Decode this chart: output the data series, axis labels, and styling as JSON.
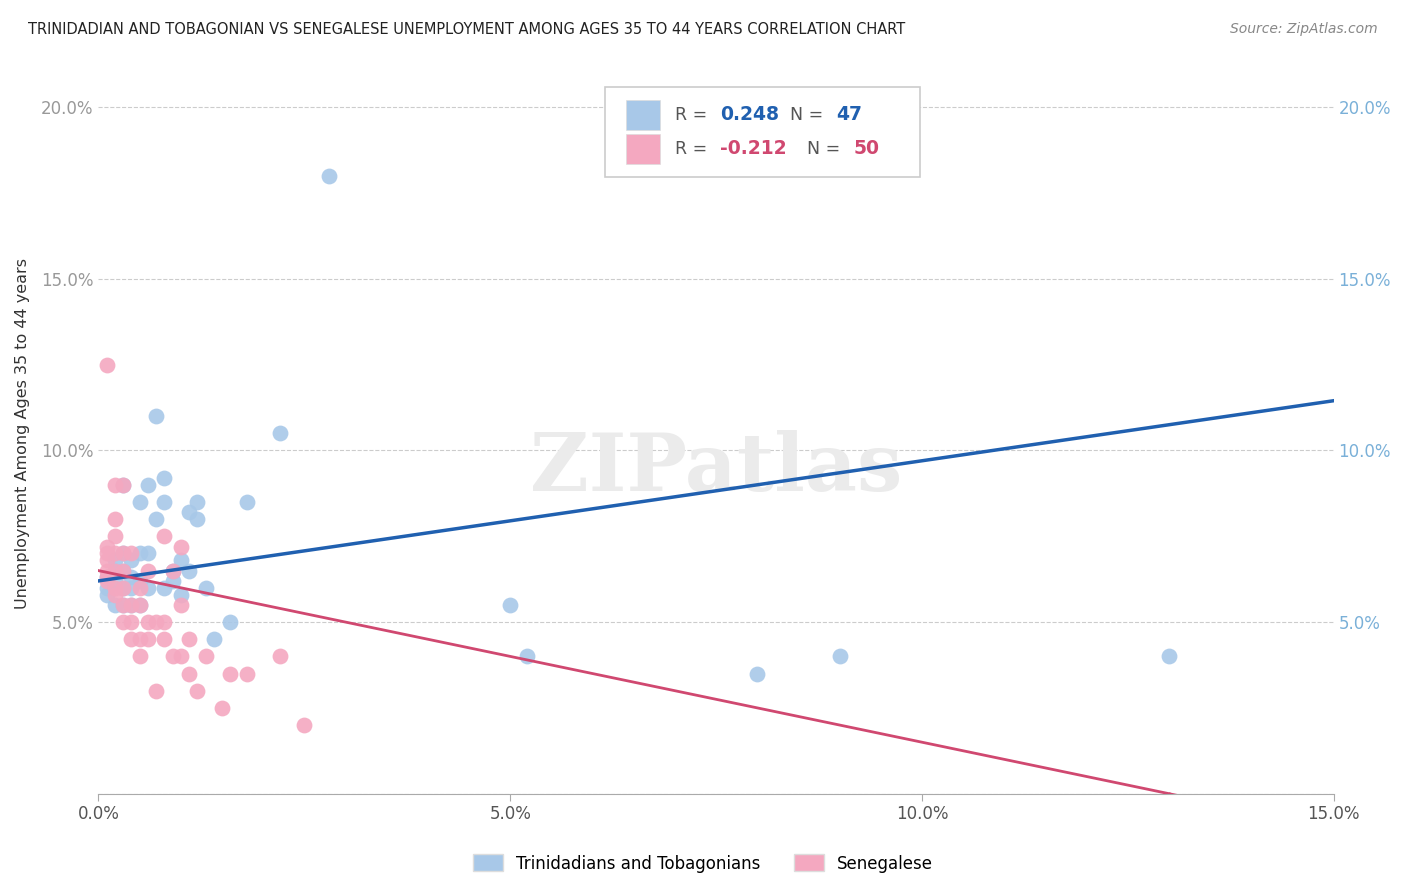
{
  "title": "TRINIDADIAN AND TOBAGONIAN VS SENEGALESE UNEMPLOYMENT AMONG AGES 35 TO 44 YEARS CORRELATION CHART",
  "source": "Source: ZipAtlas.com",
  "ylabel": "Unemployment Among Ages 35 to 44 years",
  "xlim": [
    0.0,
    0.15
  ],
  "ylim": [
    0.0,
    0.21
  ],
  "blue_R": 0.248,
  "blue_N": 47,
  "pink_R": -0.212,
  "pink_N": 50,
  "blue_color": "#a8c8e8",
  "pink_color": "#f4a8c0",
  "blue_line_color": "#2060b0",
  "pink_line_color": "#d04870",
  "legend_blue_label": "Trinidadians and Tobagonians",
  "legend_pink_label": "Senegalese",
  "blue_line_intercept": 0.062,
  "blue_line_slope": 0.35,
  "pink_line_intercept": 0.065,
  "pink_line_slope": -0.5,
  "blue_x": [
    0.001,
    0.001,
    0.001,
    0.002,
    0.002,
    0.002,
    0.002,
    0.003,
    0.003,
    0.003,
    0.003,
    0.003,
    0.004,
    0.004,
    0.004,
    0.004,
    0.005,
    0.005,
    0.005,
    0.005,
    0.006,
    0.006,
    0.006,
    0.007,
    0.007,
    0.008,
    0.008,
    0.008,
    0.009,
    0.009,
    0.01,
    0.01,
    0.011,
    0.011,
    0.012,
    0.012,
    0.013,
    0.014,
    0.016,
    0.018,
    0.022,
    0.028,
    0.05,
    0.052,
    0.08,
    0.09,
    0.13
  ],
  "blue_y": [
    0.063,
    0.06,
    0.058,
    0.065,
    0.062,
    0.068,
    0.055,
    0.06,
    0.065,
    0.07,
    0.09,
    0.055,
    0.063,
    0.06,
    0.068,
    0.055,
    0.062,
    0.07,
    0.085,
    0.055,
    0.07,
    0.06,
    0.09,
    0.08,
    0.11,
    0.06,
    0.085,
    0.092,
    0.062,
    0.065,
    0.058,
    0.068,
    0.082,
    0.065,
    0.08,
    0.085,
    0.06,
    0.045,
    0.05,
    0.085,
    0.105,
    0.18,
    0.055,
    0.04,
    0.035,
    0.04,
    0.04
  ],
  "pink_x": [
    0.001,
    0.001,
    0.001,
    0.001,
    0.001,
    0.001,
    0.001,
    0.002,
    0.002,
    0.002,
    0.002,
    0.002,
    0.002,
    0.002,
    0.003,
    0.003,
    0.003,
    0.003,
    0.003,
    0.003,
    0.004,
    0.004,
    0.004,
    0.004,
    0.005,
    0.005,
    0.005,
    0.005,
    0.006,
    0.006,
    0.006,
    0.007,
    0.007,
    0.008,
    0.008,
    0.008,
    0.009,
    0.009,
    0.01,
    0.01,
    0.01,
    0.011,
    0.011,
    0.012,
    0.013,
    0.015,
    0.016,
    0.018,
    0.022,
    0.025
  ],
  "pink_y": [
    0.062,
    0.063,
    0.065,
    0.068,
    0.07,
    0.072,
    0.125,
    0.058,
    0.06,
    0.065,
    0.07,
    0.075,
    0.08,
    0.09,
    0.05,
    0.055,
    0.06,
    0.065,
    0.07,
    0.09,
    0.045,
    0.05,
    0.055,
    0.07,
    0.04,
    0.045,
    0.055,
    0.06,
    0.045,
    0.05,
    0.065,
    0.03,
    0.05,
    0.045,
    0.05,
    0.075,
    0.04,
    0.065,
    0.04,
    0.055,
    0.072,
    0.035,
    0.045,
    0.03,
    0.04,
    0.025,
    0.035,
    0.035,
    0.04,
    0.02
  ],
  "yticks": [
    0.0,
    0.05,
    0.1,
    0.15,
    0.2
  ],
  "ytick_labels_left": [
    "",
    "5.0%",
    "10.0%",
    "15.0%",
    "20.0%"
  ],
  "ytick_labels_right": [
    "",
    "5.0%",
    "10.0%",
    "15.0%",
    "20.0%"
  ],
  "xticks": [
    0.0,
    0.05,
    0.1,
    0.15
  ],
  "xtick_labels": [
    "0.0%",
    "5.0%",
    "10.0%",
    "15.0%"
  ]
}
